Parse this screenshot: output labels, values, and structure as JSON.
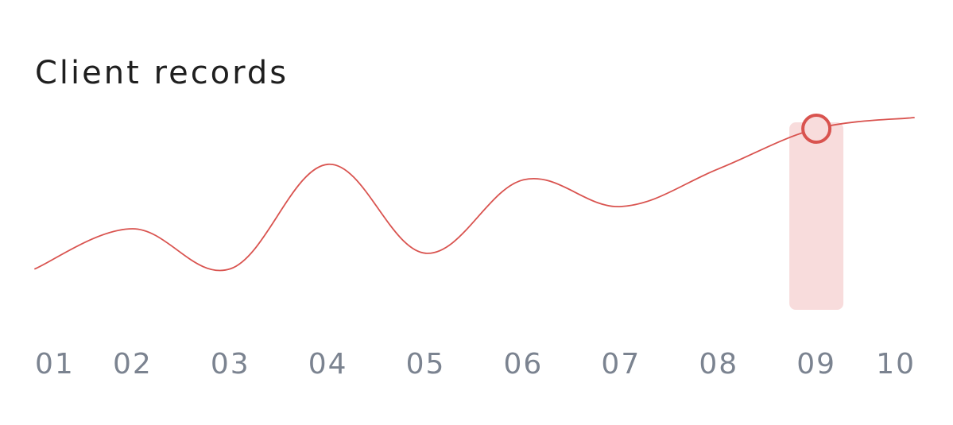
{
  "title": "Client records",
  "colors": {
    "line": "#d9534f",
    "highlight": "#f8dcdc",
    "tick": "#7b8390",
    "title": "#1f1f1f"
  },
  "chart_data": {
    "type": "line",
    "title": "Client records",
    "xlabel": "",
    "ylabel": "",
    "grid": false,
    "legend": "none",
    "categories": [
      "01",
      "02",
      "03",
      "04",
      "05",
      "06",
      "07",
      "08",
      "09",
      "10"
    ],
    "series": [
      {
        "values": [
          22,
          40,
          22,
          69,
          29,
          62,
          50,
          67,
          85,
          90
        ]
      }
    ],
    "ylim": [
      0,
      100
    ],
    "highlighted_category": "09"
  }
}
